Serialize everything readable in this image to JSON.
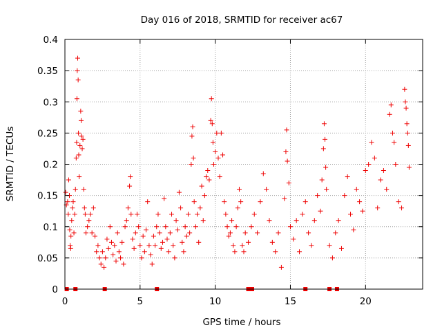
{
  "chart_data": {
    "type": "scatter",
    "title": "Day 016 of 2018, SRMTID for receiver ac67",
    "xlabel": "GPS time / hours",
    "ylabel": "SRMTID / TECUs",
    "xlim": [
      0,
      23.8
    ],
    "ylim": [
      0,
      0.4
    ],
    "x_ticks": [
      0,
      5,
      10,
      15,
      20
    ],
    "x_tick_labels": [
      "0",
      "5",
      "10",
      "15",
      "20"
    ],
    "y_ticks": [
      0,
      0.05,
      0.1,
      0.15,
      0.2,
      0.25,
      0.3,
      0.35,
      0.4
    ],
    "y_tick_labels": [
      "0",
      "0.05",
      "0.1",
      "0.15",
      "0.2",
      "0.25",
      "0.3",
      "0.35",
      "0.4"
    ],
    "grid": true,
    "marker": "+",
    "color": "#ee0000",
    "series": [
      {
        "name": "SRMTID",
        "points": [
          [
            0.05,
            0.155
          ],
          [
            0.1,
            0.135
          ],
          [
            0.18,
            0.14
          ],
          [
            0.22,
            0.12
          ],
          [
            0.25,
            0.175
          ],
          [
            0.3,
            0.15
          ],
          [
            0.32,
            0.095
          ],
          [
            0.35,
            0.07
          ],
          [
            0.38,
            0.065
          ],
          [
            0.4,
            0.085
          ],
          [
            0.45,
            0.11
          ],
          [
            0.5,
            0.13
          ],
          [
            0.55,
            0.14
          ],
          [
            0.6,
            0.09
          ],
          [
            0.65,
            0.12
          ],
          [
            0.7,
            0.16
          ],
          [
            0.75,
            0.21
          ],
          [
            0.78,
            0.235
          ],
          [
            0.8,
            0.305
          ],
          [
            0.82,
            0.35
          ],
          [
            0.85,
            0.37
          ],
          [
            0.88,
            0.335
          ],
          [
            0.9,
            0.25
          ],
          [
            0.92,
            0.215
          ],
          [
            0.95,
            0.18
          ],
          [
            1.0,
            0.23
          ],
          [
            1.05,
            0.285
          ],
          [
            1.08,
            0.27
          ],
          [
            1.1,
            0.245
          ],
          [
            1.15,
            0.225
          ],
          [
            1.2,
            0.24
          ],
          [
            1.25,
            0.16
          ],
          [
            1.3,
            0.13
          ],
          [
            1.35,
            0.12
          ],
          [
            1.4,
            0.09
          ],
          [
            1.5,
            0.1
          ],
          [
            1.6,
            0.11
          ],
          [
            1.7,
            0.12
          ],
          [
            1.8,
            0.09
          ],
          [
            1.9,
            0.13
          ],
          [
            2.0,
            0.085
          ],
          [
            2.1,
            0.06
          ],
          [
            2.2,
            0.07
          ],
          [
            2.3,
            0.05
          ],
          [
            2.4,
            0.04
          ],
          [
            2.5,
            0.06
          ],
          [
            2.6,
            0.035
          ],
          [
            2.7,
            0.05
          ],
          [
            2.8,
            0.08
          ],
          [
            2.9,
            0.065
          ],
          [
            3.0,
            0.1
          ],
          [
            3.1,
            0.075
          ],
          [
            3.2,
            0.055
          ],
          [
            3.3,
            0.07
          ],
          [
            3.4,
            0.045
          ],
          [
            3.5,
            0.09
          ],
          [
            3.6,
            0.06
          ],
          [
            3.7,
            0.05
          ],
          [
            3.8,
            0.075
          ],
          [
            3.9,
            0.04
          ],
          [
            4.0,
            0.1
          ],
          [
            4.1,
            0.11
          ],
          [
            4.2,
            0.13
          ],
          [
            4.3,
            0.165
          ],
          [
            4.35,
            0.18
          ],
          [
            4.4,
            0.12
          ],
          [
            4.5,
            0.08
          ],
          [
            4.6,
            0.065
          ],
          [
            4.7,
            0.09
          ],
          [
            4.8,
            0.12
          ],
          [
            4.9,
            0.1
          ],
          [
            5.0,
            0.07
          ],
          [
            5.1,
            0.05
          ],
          [
            5.2,
            0.085
          ],
          [
            5.3,
            0.06
          ],
          [
            5.4,
            0.095
          ],
          [
            5.5,
            0.14
          ],
          [
            5.6,
            0.07
          ],
          [
            5.7,
            0.055
          ],
          [
            5.8,
            0.04
          ],
          [
            5.9,
            0.085
          ],
          [
            6.0,
            0.07
          ],
          [
            6.1,
            0.1
          ],
          [
            6.2,
            0.12
          ],
          [
            6.3,
            0.09
          ],
          [
            6.4,
            0.065
          ],
          [
            6.5,
            0.075
          ],
          [
            6.6,
            0.145
          ],
          [
            6.7,
            0.1
          ],
          [
            6.8,
            0.08
          ],
          [
            6.9,
            0.06
          ],
          [
            7.0,
            0.09
          ],
          [
            7.1,
            0.12
          ],
          [
            7.2,
            0.07
          ],
          [
            7.3,
            0.05
          ],
          [
            7.4,
            0.11
          ],
          [
            7.5,
            0.095
          ],
          [
            7.6,
            0.155
          ],
          [
            7.7,
            0.13
          ],
          [
            7.8,
            0.075
          ],
          [
            7.9,
            0.06
          ],
          [
            8.0,
            0.1
          ],
          [
            8.1,
            0.085
          ],
          [
            8.2,
            0.12
          ],
          [
            8.3,
            0.09
          ],
          [
            8.4,
            0.2
          ],
          [
            8.45,
            0.245
          ],
          [
            8.5,
            0.26
          ],
          [
            8.55,
            0.21
          ],
          [
            8.6,
            0.14
          ],
          [
            8.7,
            0.1
          ],
          [
            8.8,
            0.12
          ],
          [
            8.9,
            0.075
          ],
          [
            9.0,
            0.13
          ],
          [
            9.1,
            0.165
          ],
          [
            9.2,
            0.11
          ],
          [
            9.3,
            0.15
          ],
          [
            9.4,
            0.18
          ],
          [
            9.5,
            0.19
          ],
          [
            9.6,
            0.175
          ],
          [
            9.7,
            0.27
          ],
          [
            9.75,
            0.305
          ],
          [
            9.8,
            0.265
          ],
          [
            9.85,
            0.235
          ],
          [
            9.9,
            0.2
          ],
          [
            10.0,
            0.22
          ],
          [
            10.1,
            0.25
          ],
          [
            10.2,
            0.21
          ],
          [
            10.3,
            0.18
          ],
          [
            10.4,
            0.25
          ],
          [
            10.5,
            0.215
          ],
          [
            10.6,
            0.14
          ],
          [
            10.7,
            0.12
          ],
          [
            10.8,
            0.1
          ],
          [
            10.9,
            0.085
          ],
          [
            11.0,
            0.09
          ],
          [
            11.1,
            0.11
          ],
          [
            11.2,
            0.07
          ],
          [
            11.3,
            0.06
          ],
          [
            11.4,
            0.1
          ],
          [
            11.5,
            0.13
          ],
          [
            11.6,
            0.16
          ],
          [
            11.7,
            0.14
          ],
          [
            11.8,
            0.07
          ],
          [
            11.9,
            0.06
          ],
          [
            12.0,
            0.09
          ],
          [
            12.2,
            0.075
          ],
          [
            12.4,
            0.1
          ],
          [
            12.6,
            0.12
          ],
          [
            12.8,
            0.09
          ],
          [
            13.0,
            0.14
          ],
          [
            13.2,
            0.185
          ],
          [
            13.4,
            0.16
          ],
          [
            13.6,
            0.11
          ],
          [
            13.8,
            0.075
          ],
          [
            14.0,
            0.06
          ],
          [
            14.2,
            0.09
          ],
          [
            14.4,
            0.035
          ],
          [
            14.6,
            0.145
          ],
          [
            14.7,
            0.22
          ],
          [
            14.75,
            0.255
          ],
          [
            14.8,
            0.205
          ],
          [
            14.9,
            0.17
          ],
          [
            15.0,
            0.1
          ],
          [
            15.2,
            0.08
          ],
          [
            15.4,
            0.11
          ],
          [
            15.6,
            0.06
          ],
          [
            15.8,
            0.12
          ],
          [
            16.0,
            0.14
          ],
          [
            16.2,
            0.09
          ],
          [
            16.4,
            0.07
          ],
          [
            16.6,
            0.11
          ],
          [
            16.8,
            0.15
          ],
          [
            17.0,
            0.125
          ],
          [
            17.1,
            0.175
          ],
          [
            17.2,
            0.225
          ],
          [
            17.25,
            0.265
          ],
          [
            17.3,
            0.24
          ],
          [
            17.35,
            0.195
          ],
          [
            17.4,
            0.16
          ],
          [
            17.6,
            0.07
          ],
          [
            17.8,
            0.05
          ],
          [
            18.0,
            0.09
          ],
          [
            18.2,
            0.11
          ],
          [
            18.4,
            0.065
          ],
          [
            18.6,
            0.15
          ],
          [
            18.8,
            0.18
          ],
          [
            19.0,
            0.12
          ],
          [
            19.2,
            0.095
          ],
          [
            19.4,
            0.16
          ],
          [
            19.6,
            0.14
          ],
          [
            19.8,
            0.125
          ],
          [
            20.0,
            0.19
          ],
          [
            20.2,
            0.2
          ],
          [
            20.4,
            0.235
          ],
          [
            20.6,
            0.21
          ],
          [
            20.8,
            0.13
          ],
          [
            21.0,
            0.175
          ],
          [
            21.2,
            0.19
          ],
          [
            21.4,
            0.16
          ],
          [
            21.6,
            0.28
          ],
          [
            21.7,
            0.295
          ],
          [
            21.8,
            0.25
          ],
          [
            21.9,
            0.235
          ],
          [
            22.0,
            0.2
          ],
          [
            22.2,
            0.14
          ],
          [
            22.4,
            0.13
          ],
          [
            22.6,
            0.32
          ],
          [
            22.65,
            0.3
          ],
          [
            22.7,
            0.29
          ],
          [
            22.75,
            0.265
          ],
          [
            22.8,
            0.25
          ],
          [
            22.85,
            0.23
          ],
          [
            22.9,
            0.195
          ]
        ]
      }
    ]
  }
}
